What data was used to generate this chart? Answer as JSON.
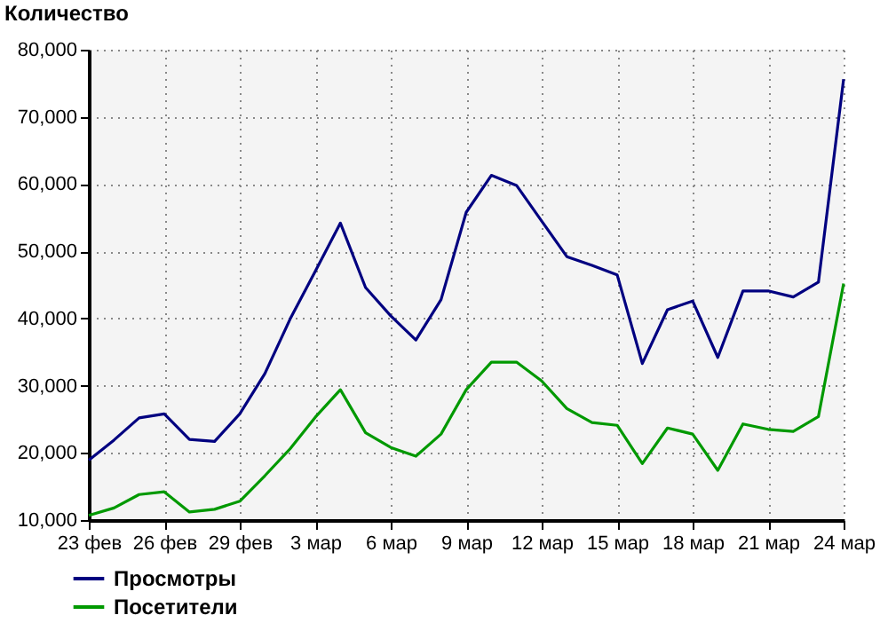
{
  "chart_data": {
    "type": "line",
    "ylabel": "Количество",
    "categories": [
      "23 фев",
      null,
      null,
      "26 фев",
      null,
      null,
      "29 фев",
      null,
      null,
      "3 мар",
      null,
      null,
      "6 мар",
      null,
      null,
      "9 мар",
      null,
      null,
      "12 мар",
      null,
      null,
      "15 мар",
      null,
      null,
      "18 мар",
      null,
      null,
      "21 мар",
      null,
      null,
      "24 мар"
    ],
    "series": [
      {
        "name": "Просмотры",
        "color": "#000080",
        "values": [
          18900,
          21900,
          25200,
          25800,
          22000,
          21700,
          25800,
          31800,
          39900,
          47000,
          54200,
          44600,
          40400,
          36800,
          42800,
          55800,
          61300,
          59800,
          54500,
          49200,
          47900,
          46500,
          33300,
          41300,
          42600,
          34200,
          44100,
          44100,
          43200,
          45400,
          75600
        ]
      },
      {
        "name": "Посетители",
        "color": "#009900",
        "values": [
          10700,
          11800,
          13800,
          14200,
          11200,
          11600,
          12800,
          16600,
          20600,
          25300,
          29400,
          23000,
          20800,
          19500,
          22800,
          29400,
          33500,
          33500,
          30700,
          26600,
          24500,
          24100,
          18400,
          23700,
          22800,
          17400,
          24300,
          23500,
          23200,
          25400,
          45200
        ]
      }
    ],
    "ylim": [
      10000,
      80000
    ],
    "yticks": [
      {
        "value": 10000,
        "label": "10,000"
      },
      {
        "value": 20000,
        "label": "20,000"
      },
      {
        "value": 30000,
        "label": "30,000"
      },
      {
        "value": 40000,
        "label": "40,000"
      },
      {
        "value": 50000,
        "label": "50,000"
      },
      {
        "value": 60000,
        "label": "60,000"
      },
      {
        "value": 70000,
        "label": "70,000"
      },
      {
        "value": 80000,
        "label": "80,000"
      }
    ],
    "grid": true,
    "legend": "bottom left",
    "marker": "none",
    "line_style": "solid"
  }
}
